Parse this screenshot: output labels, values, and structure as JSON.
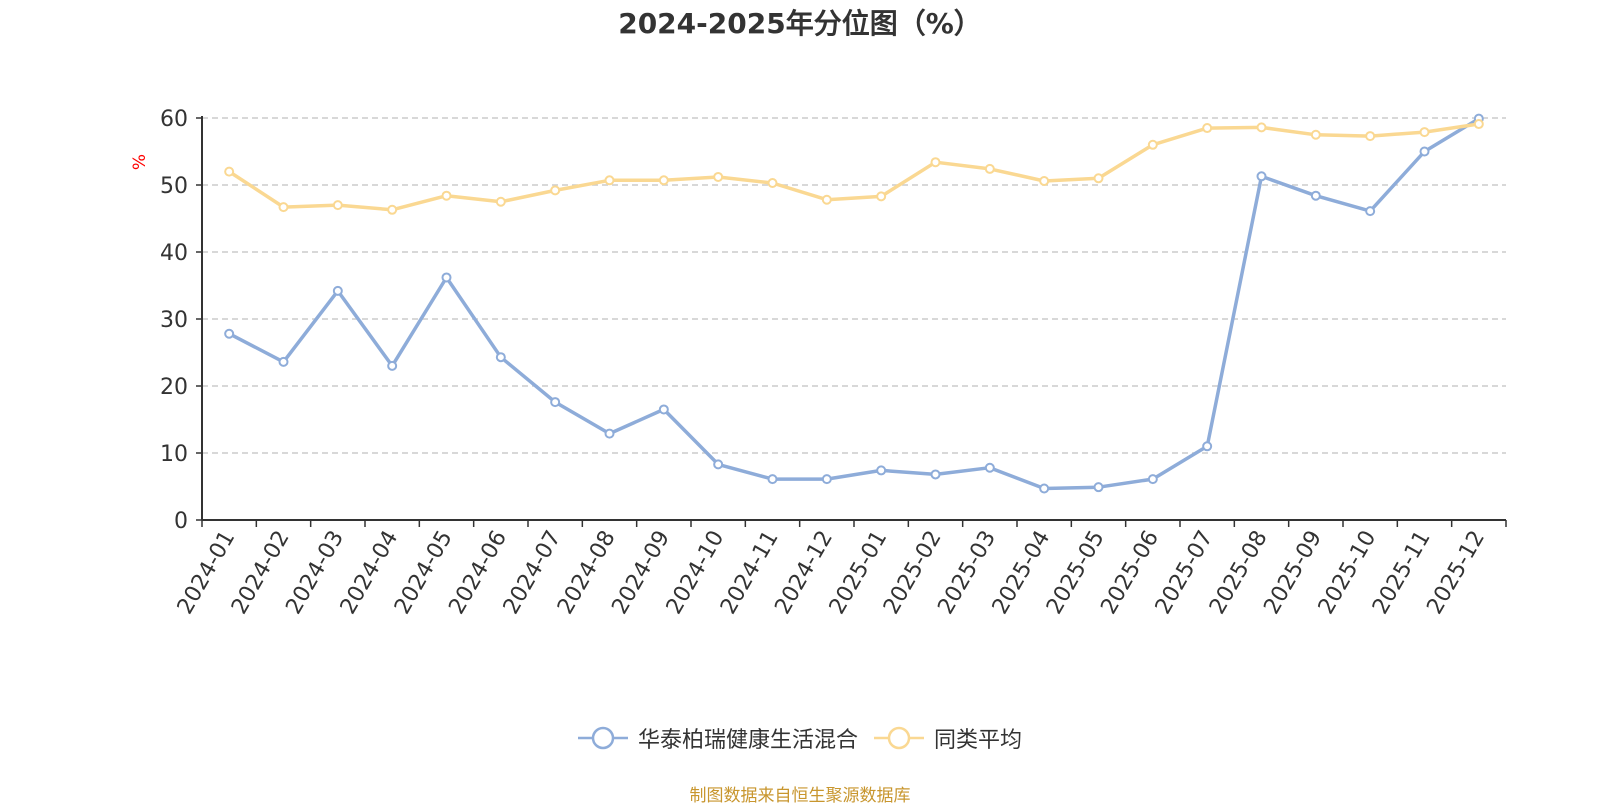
{
  "chart_data": {
    "type": "line",
    "title": "2024-2025年分位图（%）",
    "ylabel": "%",
    "xlabel": "",
    "ylim": [
      0,
      60
    ],
    "yticks": [
      0,
      10,
      20,
      30,
      40,
      50,
      60
    ],
    "grid": true,
    "legend_position": "bottom-center",
    "categories": [
      "2024-01",
      "2024-02",
      "2024-03",
      "2024-04",
      "2024-05",
      "2024-06",
      "2024-07",
      "2024-08",
      "2024-09",
      "2024-10",
      "2024-11",
      "2024-12",
      "2025-01",
      "2025-02",
      "2025-03",
      "2025-04",
      "2025-05",
      "2025-06",
      "2025-07",
      "2025-08",
      "2025-09",
      "2025-10",
      "2025-11",
      "2025-12"
    ],
    "series": [
      {
        "name": "华泰柏瑞健康生活混合",
        "color": "#8eacd9",
        "values": [
          27.8,
          23.6,
          34.2,
          23.0,
          36.2,
          24.3,
          17.6,
          12.9,
          16.5,
          8.3,
          6.1,
          6.1,
          7.4,
          6.8,
          7.8,
          4.7,
          4.9,
          6.1,
          11.0,
          51.3,
          48.4,
          46.1,
          55.0,
          59.9
        ]
      },
      {
        "name": "同类平均",
        "color": "#fad892",
        "values": [
          52.0,
          46.7,
          47.0,
          46.3,
          48.4,
          47.5,
          49.2,
          50.7,
          50.7,
          51.2,
          50.3,
          47.8,
          48.3,
          53.4,
          52.4,
          50.6,
          51.0,
          56.0,
          58.5,
          58.6,
          57.5,
          57.3,
          57.9,
          59.1
        ]
      }
    ],
    "source": "制图数据来自恒生聚源数据库"
  },
  "colors": {
    "axis": "#333333",
    "grid": "#cccccc",
    "ylabel": "#ff0000",
    "source": "#c8962e"
  }
}
